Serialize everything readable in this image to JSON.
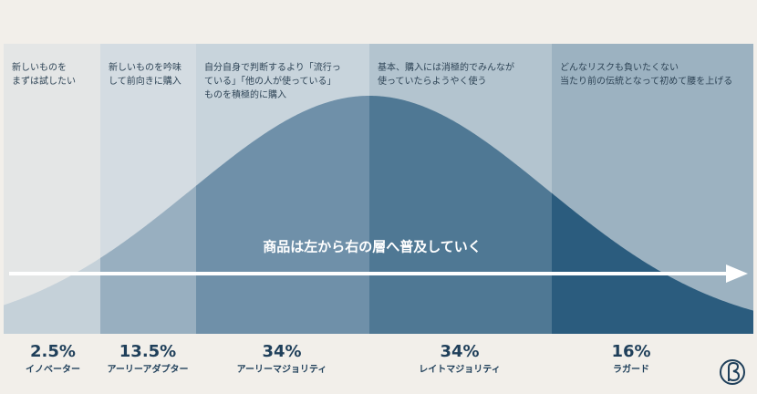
{
  "chart_data": {
    "type": "diffusion",
    "annotation": "商品は左から右の層へ普及していく",
    "segments": [
      {
        "name": "イノベーター",
        "value": 2.5,
        "value_label": "2.5%",
        "description": [
          "新しいものを",
          "まずは試したい"
        ]
      },
      {
        "name": "アーリーアダプター",
        "value": 13.5,
        "value_label": "13.5%",
        "description": [
          "新しいものを吟味",
          "して前向きに購入"
        ]
      },
      {
        "name": "アーリーマジョリティ",
        "value": 34,
        "value_label": "34%",
        "description": [
          "自分自身で判断するより「流行っ",
          "ている」「他の人が使っている」",
          "ものを積極的に購入"
        ]
      },
      {
        "name": "レイトマジョリティ",
        "value": 34,
        "value_label": "34%",
        "description": [
          "基本、購入には消極的でみんなが",
          "使っていたらようやく使う"
        ]
      },
      {
        "name": "ラガード",
        "value": 16,
        "value_label": "16%",
        "description": [
          "どんなリスクも負いたくない",
          "当たり前の伝統となって初めて腰を上げる"
        ]
      }
    ],
    "background_colors": [
      "#e4e6e6",
      "#d4dce2",
      "#c8d4dc",
      "#b3c4cf",
      "#9cb2c1"
    ],
    "curve_colors": [
      "#c5d1d9",
      "#98afc0",
      "#6f90a9",
      "#4f7894",
      "#2b5c7e"
    ]
  }
}
